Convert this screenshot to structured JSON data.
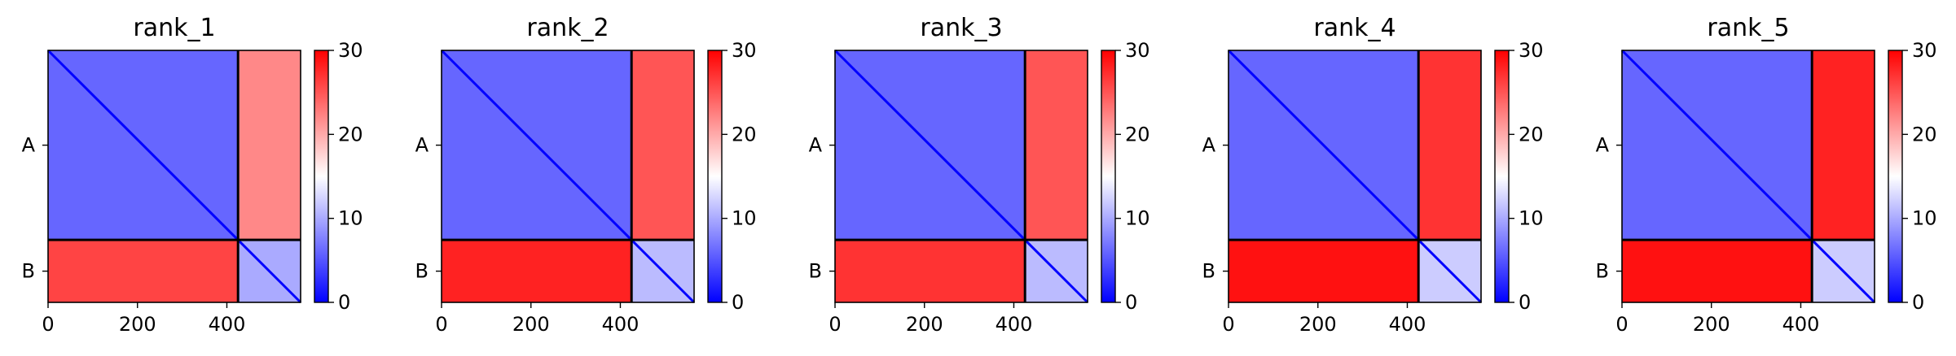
{
  "chart_data": [
    {
      "type": "heatmap",
      "title": "rank_1",
      "x_ticks": [
        0,
        200,
        400
      ],
      "xlim": [
        0,
        565
      ],
      "chains": [
        "A",
        "B"
      ],
      "chain_boundary": 425,
      "colorbar": {
        "ticks": [
          0,
          10,
          20,
          30
        ],
        "range": [
          0,
          30
        ],
        "colors": [
          "#0000ff",
          "#ffffff",
          "#ff0000"
        ]
      },
      "blocks": {
        "AA": 6,
        "AB": 22,
        "BA": 26,
        "BB": 10
      }
    },
    {
      "type": "heatmap",
      "title": "rank_2",
      "x_ticks": [
        0,
        200,
        400
      ],
      "xlim": [
        0,
        565
      ],
      "chains": [
        "A",
        "B"
      ],
      "chain_boundary": 425,
      "colorbar": {
        "ticks": [
          0,
          10,
          20,
          30
        ],
        "range": [
          0,
          30
        ],
        "colors": [
          "#0000ff",
          "#ffffff",
          "#ff0000"
        ]
      },
      "blocks": {
        "AA": 6,
        "AB": 25,
        "BA": 28,
        "BB": 11
      }
    },
    {
      "type": "heatmap",
      "title": "rank_3",
      "x_ticks": [
        0,
        200,
        400
      ],
      "xlim": [
        0,
        565
      ],
      "chains": [
        "A",
        "B"
      ],
      "chain_boundary": 425,
      "colorbar": {
        "ticks": [
          0,
          10,
          20,
          30
        ],
        "range": [
          0,
          30
        ],
        "colors": [
          "#0000ff",
          "#ffffff",
          "#ff0000"
        ]
      },
      "blocks": {
        "AA": 6,
        "AB": 25,
        "BA": 27,
        "BB": 11
      }
    },
    {
      "type": "heatmap",
      "title": "rank_4",
      "x_ticks": [
        0,
        200,
        400
      ],
      "xlim": [
        0,
        565
      ],
      "chains": [
        "A",
        "B"
      ],
      "chain_boundary": 425,
      "colorbar": {
        "ticks": [
          0,
          10,
          20,
          30
        ],
        "range": [
          0,
          30
        ],
        "colors": [
          "#0000ff",
          "#ffffff",
          "#ff0000"
        ]
      },
      "blocks": {
        "AA": 6,
        "AB": 27,
        "BA": 29,
        "BB": 12
      }
    },
    {
      "type": "heatmap",
      "title": "rank_5",
      "x_ticks": [
        0,
        200,
        400
      ],
      "xlim": [
        0,
        565
      ],
      "chains": [
        "A",
        "B"
      ],
      "chain_boundary": 425,
      "colorbar": {
        "ticks": [
          0,
          10,
          20,
          30
        ],
        "range": [
          0,
          30
        ],
        "colors": [
          "#0000ff",
          "#ffffff",
          "#ff0000"
        ]
      },
      "blocks": {
        "AA": 6,
        "AB": 28,
        "BA": 29,
        "BB": 12
      }
    }
  ]
}
